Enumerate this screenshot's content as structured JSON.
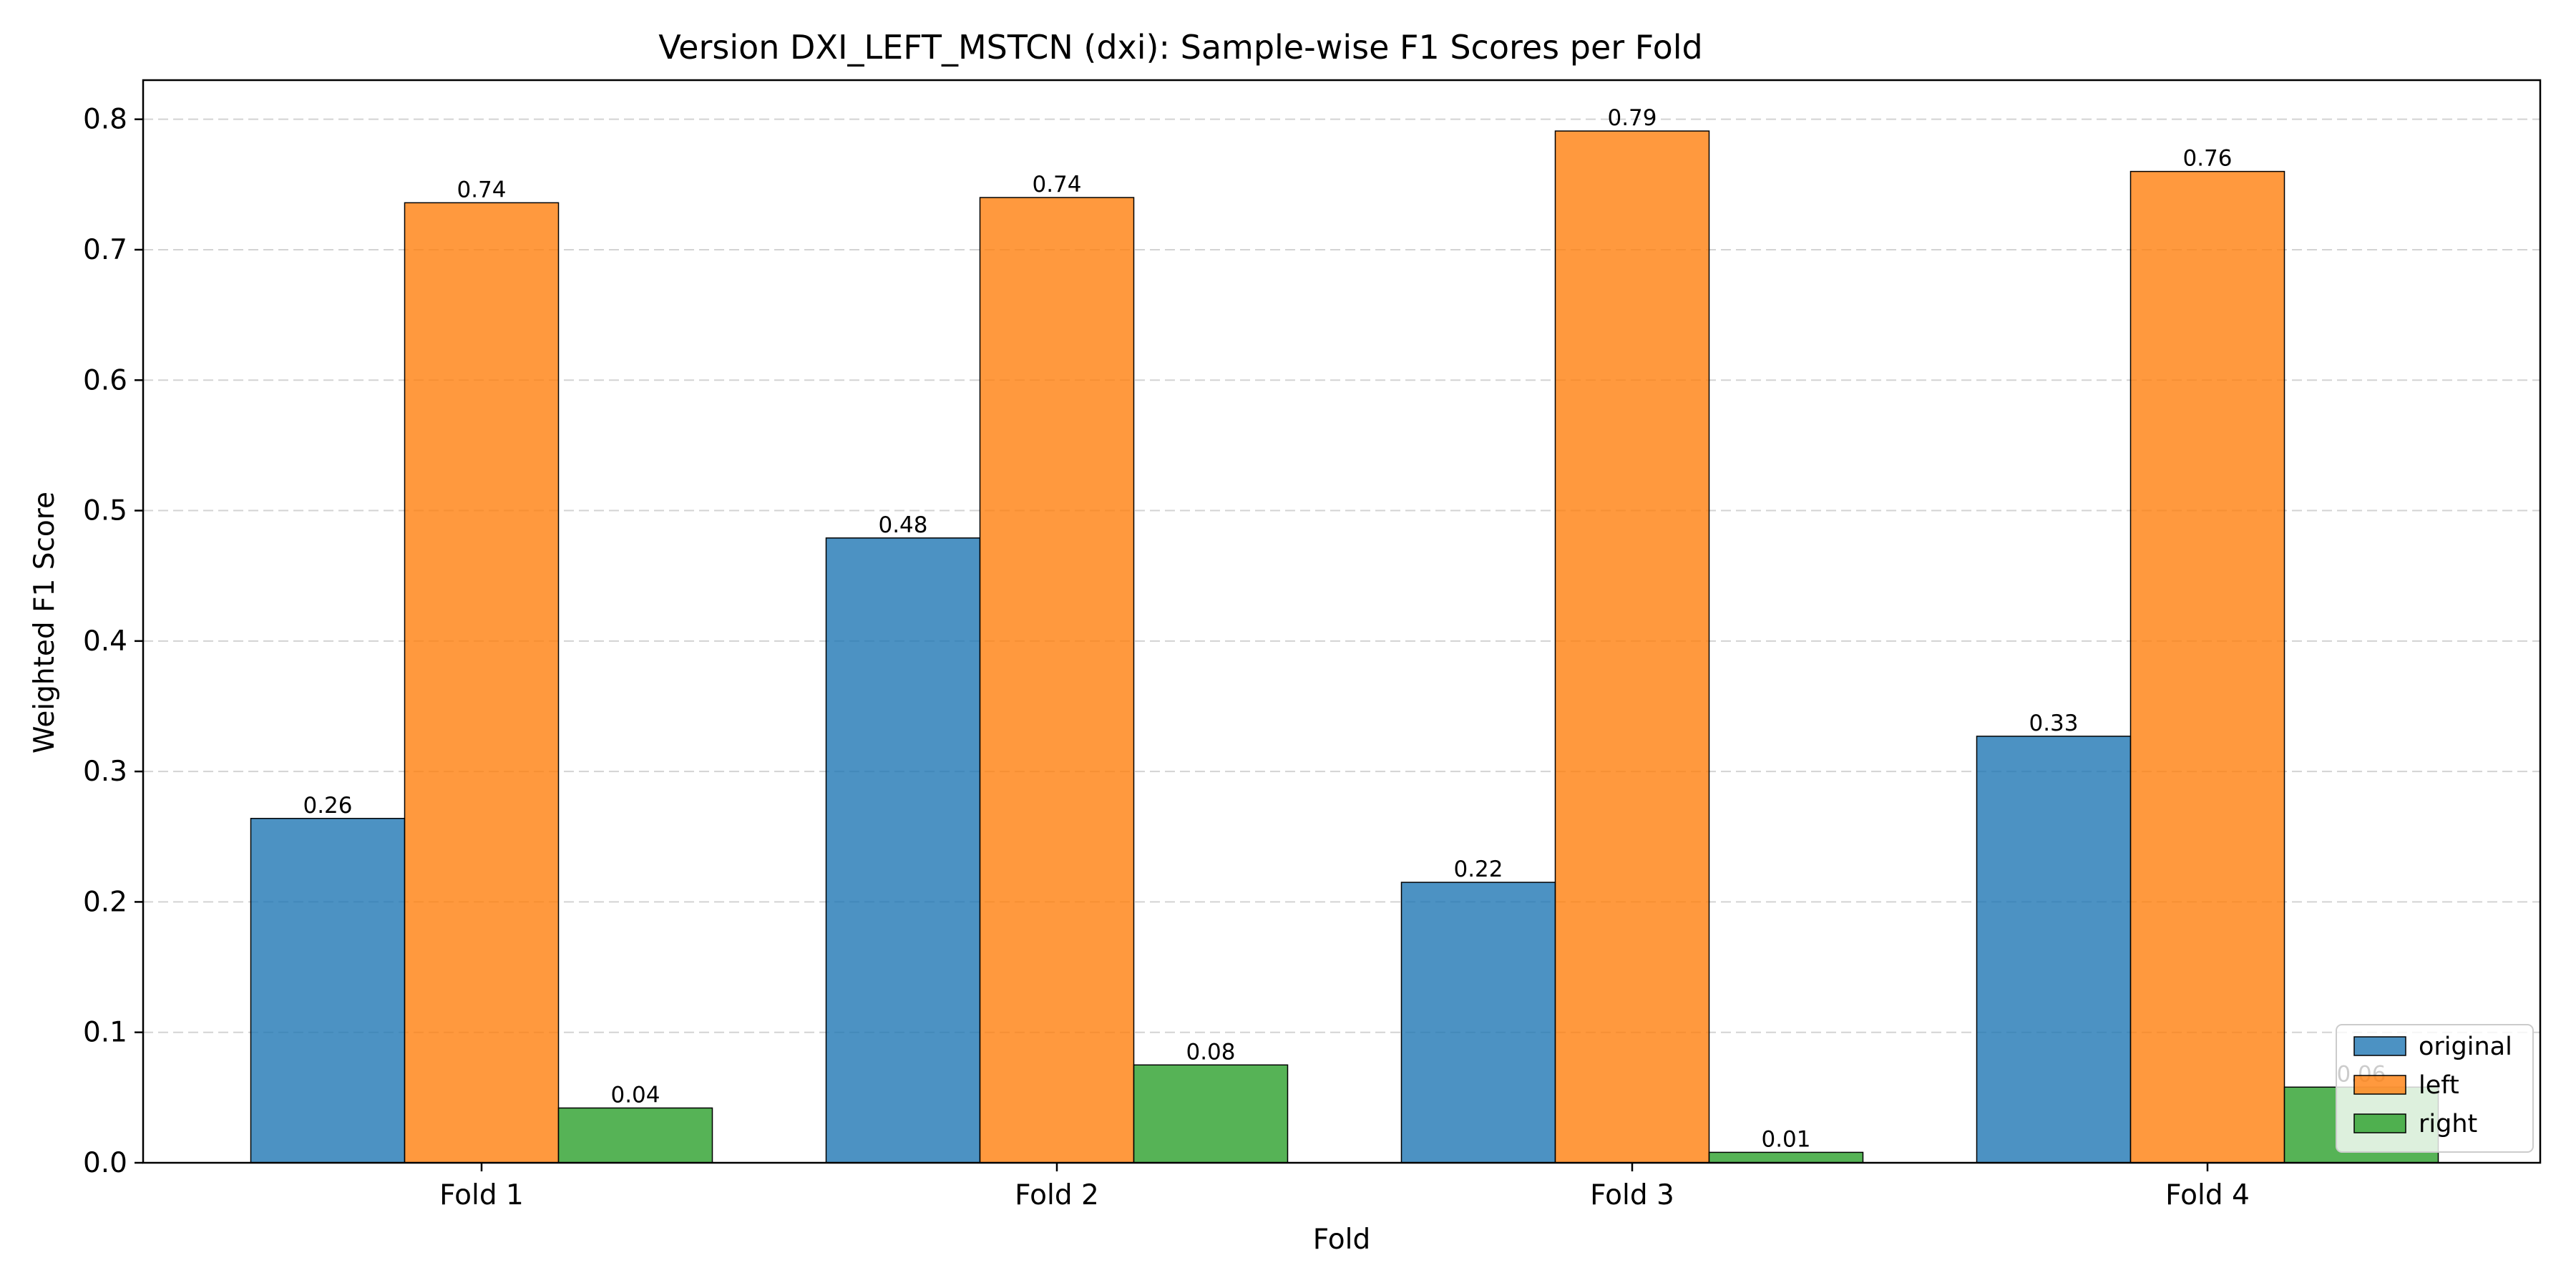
{
  "chart_data": {
    "type": "bar",
    "title": "Version DXI_LEFT_MSTCN (dxi): Sample-wise F1 Scores per Fold",
    "xlabel": "Fold",
    "ylabel": "Weighted F1 Score",
    "categories": [
      "Fold 1",
      "Fold 2",
      "Fold 3",
      "Fold 4"
    ],
    "series": [
      {
        "name": "original",
        "color": "#1f77b4",
        "values": [
          0.264,
          0.479,
          0.215,
          0.327
        ],
        "labels": [
          "0.26",
          "0.48",
          "0.22",
          "0.33"
        ]
      },
      {
        "name": "left",
        "color": "#ff7f0e",
        "values": [
          0.736,
          0.74,
          0.791,
          0.76
        ],
        "labels": [
          "0.74",
          "0.74",
          "0.79",
          "0.76"
        ]
      },
      {
        "name": "right",
        "color": "#2ca02c",
        "values": [
          0.042,
          0.075,
          0.008,
          0.058
        ],
        "labels": [
          "0.04",
          "0.08",
          "0.01",
          "0.06"
        ]
      }
    ],
    "ylim": [
      0,
      0.83
    ],
    "yticks": [
      0.0,
      0.1,
      0.2,
      0.3,
      0.4,
      0.5,
      0.6,
      0.7,
      0.8
    ],
    "ytick_labels": [
      "0.0",
      "0.1",
      "0.2",
      "0.3",
      "0.4",
      "0.5",
      "0.6",
      "0.7",
      "0.8"
    ],
    "grid": "y-dashed",
    "legend_position": "lower right"
  }
}
